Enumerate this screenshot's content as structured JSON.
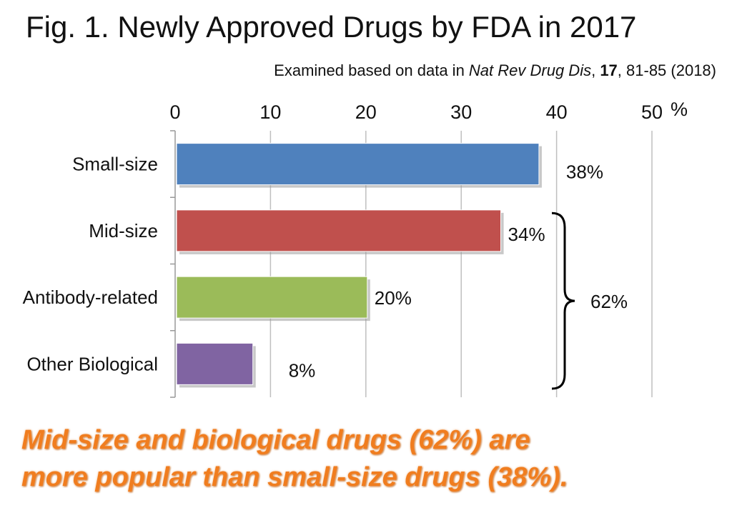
{
  "title": "Fig. 1. Newly Approved Drugs by FDA in 2017",
  "source": {
    "prefix": "Examined based on data in ",
    "journal": "Nat Rev Drug Dis",
    "sep": ", ",
    "volume": "17",
    "pages": ", 81-85 (2018)"
  },
  "chart_data": {
    "type": "bar",
    "orientation": "horizontal",
    "categories": [
      "Small-size",
      "Mid-size",
      "Antibody-related",
      "Other Biological"
    ],
    "values": [
      38,
      34,
      20,
      8
    ],
    "data_labels": [
      "38%",
      "34%",
      "20%",
      "8%"
    ],
    "colors": [
      "#4f81bd",
      "#c0504d",
      "#9bbb59",
      "#8064a2"
    ],
    "xlim": [
      0,
      50
    ],
    "ticks": [
      0,
      10,
      20,
      30,
      40,
      50
    ],
    "tick_labels": [
      "0",
      "10",
      "20",
      "30",
      "40",
      "50"
    ],
    "axis_unit": "%",
    "axis_position": "top",
    "grid": true,
    "bracket": {
      "categories": [
        "Mid-size",
        "Antibody-related",
        "Other Biological"
      ],
      "label": "62%"
    }
  },
  "conclusion": {
    "line1": "Mid-size and biological drugs (62%) are",
    "line2": "more popular than small-size drugs (38%)."
  }
}
